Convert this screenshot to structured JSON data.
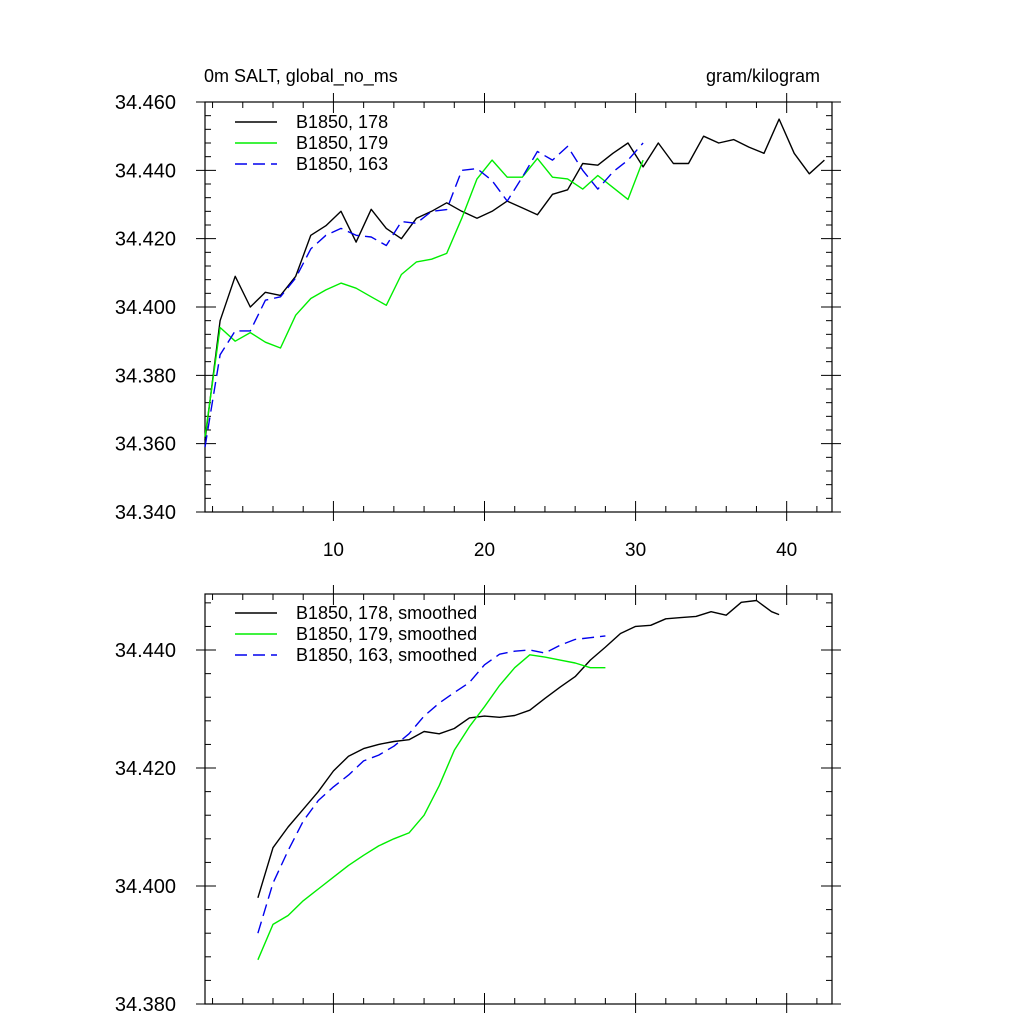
{
  "chart_data": [
    {
      "type": "line",
      "title_left": "0m SALT, global_no_ms",
      "title_right": "gram/kilogram",
      "xlim": [
        1.5,
        43
      ],
      "ylim": [
        34.34,
        34.46
      ],
      "xticks": [
        10,
        20,
        30,
        40
      ],
      "xtick_labels": [
        "10",
        "20",
        "30",
        "40"
      ],
      "yticks": [
        34.34,
        34.36,
        34.38,
        34.4,
        34.42,
        34.44,
        34.46
      ],
      "ytick_labels": [
        "34.340",
        "34.360",
        "34.380",
        "34.400",
        "34.420",
        "34.440",
        "34.460"
      ],
      "grid": false,
      "legend_position": "top-left",
      "series": [
        {
          "name": "B1850, 178",
          "color": "#000000",
          "dash": "solid",
          "x": [
            1.5,
            2.5,
            3.5,
            4.5,
            5.5,
            6.5,
            7.5,
            8.5,
            9.5,
            10.5,
            11.5,
            12.5,
            13.5,
            14.5,
            15.5,
            16.5,
            17.5,
            18.5,
            19.5,
            20.5,
            21.5,
            22.5,
            23.5,
            24.5,
            25.5,
            26.5,
            27.5,
            28.5,
            29.5,
            30.5,
            31.5,
            32.5,
            33.5,
            34.5,
            35.5,
            36.5,
            37.5,
            38.5,
            39.5,
            40.5,
            41.5,
            42.5
          ],
          "y": [
            34.361,
            34.396,
            34.409,
            34.4,
            34.4043,
            34.4034,
            34.409,
            34.421,
            34.4238,
            34.428,
            34.419,
            34.4286,
            34.423,
            34.42,
            34.426,
            34.428,
            34.4305,
            34.428,
            34.426,
            34.428,
            34.431,
            34.429,
            34.427,
            34.433,
            34.4343,
            34.442,
            34.4415,
            34.445,
            34.448,
            34.441,
            34.448,
            34.442,
            34.442,
            34.45,
            34.448,
            34.449,
            34.4468,
            34.445,
            34.455,
            34.445,
            34.439,
            34.443
          ]
        },
        {
          "name": "B1850, 179",
          "color": "#00ee00",
          "dash": "solid",
          "x": [
            1.5,
            2.5,
            3.5,
            4.5,
            5.5,
            6.5,
            7.5,
            8.5,
            9.5,
            10.5,
            11.5,
            12.5,
            13.5,
            14.5,
            15.5,
            16.5,
            17.5,
            18.5,
            19.5,
            20.5,
            21.5,
            22.5,
            23.5,
            24.5,
            25.5,
            26.5,
            27.5,
            28.5,
            29.5,
            30.5
          ],
          "y": [
            34.362,
            34.394,
            34.39,
            34.3925,
            34.3897,
            34.388,
            34.3976,
            34.4025,
            34.405,
            34.407,
            34.4055,
            34.403,
            34.4005,
            34.4095,
            34.4132,
            34.414,
            34.4157,
            34.426,
            34.4375,
            34.443,
            34.438,
            34.438,
            34.4435,
            34.438,
            34.4375,
            34.4345,
            34.4385,
            34.435,
            34.4315,
            34.443
          ]
        },
        {
          "name": "B1850, 163",
          "color": "#0000ee",
          "dash": "dashed",
          "x": [
            1.5,
            2.5,
            3.5,
            4.5,
            5.5,
            6.5,
            7.5,
            8.5,
            9.5,
            10.5,
            11.5,
            12.5,
            13.5,
            14.5,
            15.5,
            16.5,
            17.5,
            18.5,
            19.5,
            20.5,
            21.5,
            22.5,
            23.5,
            24.5,
            25.5,
            26.5,
            27.5,
            28.5,
            29.5,
            30.5
          ],
          "y": [
            34.359,
            34.386,
            34.393,
            34.393,
            34.402,
            34.403,
            34.4085,
            34.417,
            34.421,
            34.423,
            34.421,
            34.4205,
            34.418,
            34.425,
            34.4245,
            34.428,
            34.4285,
            34.44,
            34.4405,
            34.437,
            34.431,
            34.438,
            34.4455,
            34.443,
            34.447,
            34.44,
            34.4345,
            34.4395,
            34.443,
            34.448
          ]
        }
      ]
    },
    {
      "type": "line",
      "xlim": [
        1.5,
        43
      ],
      "ylim": [
        34.38,
        34.4495
      ],
      "xticks": [
        10,
        20,
        30,
        40
      ],
      "xtick_labels": [
        "",
        "",
        "",
        ""
      ],
      "yticks": [
        34.38,
        34.4,
        34.42,
        34.44
      ],
      "ytick_labels": [
        "34.380",
        "34.400",
        "34.420",
        "34.440"
      ],
      "grid": false,
      "legend_position": "top-left",
      "series": [
        {
          "name": "B1850, 178, smoothed",
          "color": "#000000",
          "dash": "solid",
          "x": [
            5.0,
            6.0,
            7.0,
            8.0,
            9.0,
            10.0,
            11.0,
            12.0,
            13.0,
            14.0,
            15.0,
            16.0,
            17.0,
            18.0,
            19.0,
            20.0,
            21.0,
            22.0,
            23.0,
            24.0,
            25.0,
            26.0,
            27.0,
            28.0,
            29.0,
            30.0,
            31.0,
            32.0,
            33.0,
            34.0,
            35.0,
            36.0,
            37.0,
            38.0,
            39.0,
            39.5
          ],
          "y": [
            34.398,
            34.4065,
            34.41,
            34.413,
            34.416,
            34.4195,
            34.422,
            34.4233,
            34.424,
            34.4245,
            34.4248,
            34.4262,
            34.4258,
            34.4267,
            34.4285,
            34.4288,
            34.4286,
            34.4289,
            34.4298,
            34.4318,
            34.4337,
            34.4355,
            34.4383,
            34.4405,
            34.4428,
            34.444,
            34.4442,
            34.4453,
            34.4455,
            34.4457,
            34.4465,
            34.4459,
            34.4481,
            34.4484,
            34.4465,
            34.446
          ]
        },
        {
          "name": "B1850, 179, smoothed",
          "color": "#00ee00",
          "dash": "solid",
          "x": [
            5.0,
            6.0,
            7.0,
            8.0,
            9.0,
            10.0,
            11.0,
            12.0,
            13.0,
            14.0,
            15.0,
            16.0,
            17.0,
            18.0,
            19.0,
            20.0,
            21.0,
            22.0,
            23.0,
            24.0,
            25.0,
            26.0,
            27.0,
            28.0
          ],
          "y": [
            34.3875,
            34.3935,
            34.395,
            34.3975,
            34.3995,
            34.4015,
            34.4035,
            34.4052,
            34.4068,
            34.408,
            34.409,
            34.412,
            34.417,
            34.423,
            34.427,
            34.4304,
            34.434,
            34.437,
            34.4392,
            34.4388,
            34.4383,
            34.4378,
            34.437,
            34.437
          ]
        },
        {
          "name": "B1850, 163, smoothed",
          "color": "#0000ee",
          "dash": "dashed",
          "x": [
            5.0,
            6.0,
            7.0,
            8.0,
            9.0,
            10.0,
            11.0,
            12.0,
            13.0,
            14.0,
            15.0,
            16.0,
            17.0,
            18.0,
            19.0,
            20.0,
            21.0,
            22.0,
            23.0,
            24.0,
            25.0,
            26.0,
            27.0,
            28.0
          ],
          "y": [
            34.392,
            34.4005,
            34.406,
            34.411,
            34.4145,
            34.4168,
            34.4188,
            34.4212,
            34.4222,
            34.4237,
            34.4258,
            34.4288,
            34.431,
            34.4328,
            34.4345,
            34.4375,
            34.4393,
            34.4398,
            34.44,
            34.4395,
            34.4408,
            34.4418,
            34.4421,
            34.4424
          ]
        }
      ]
    }
  ]
}
